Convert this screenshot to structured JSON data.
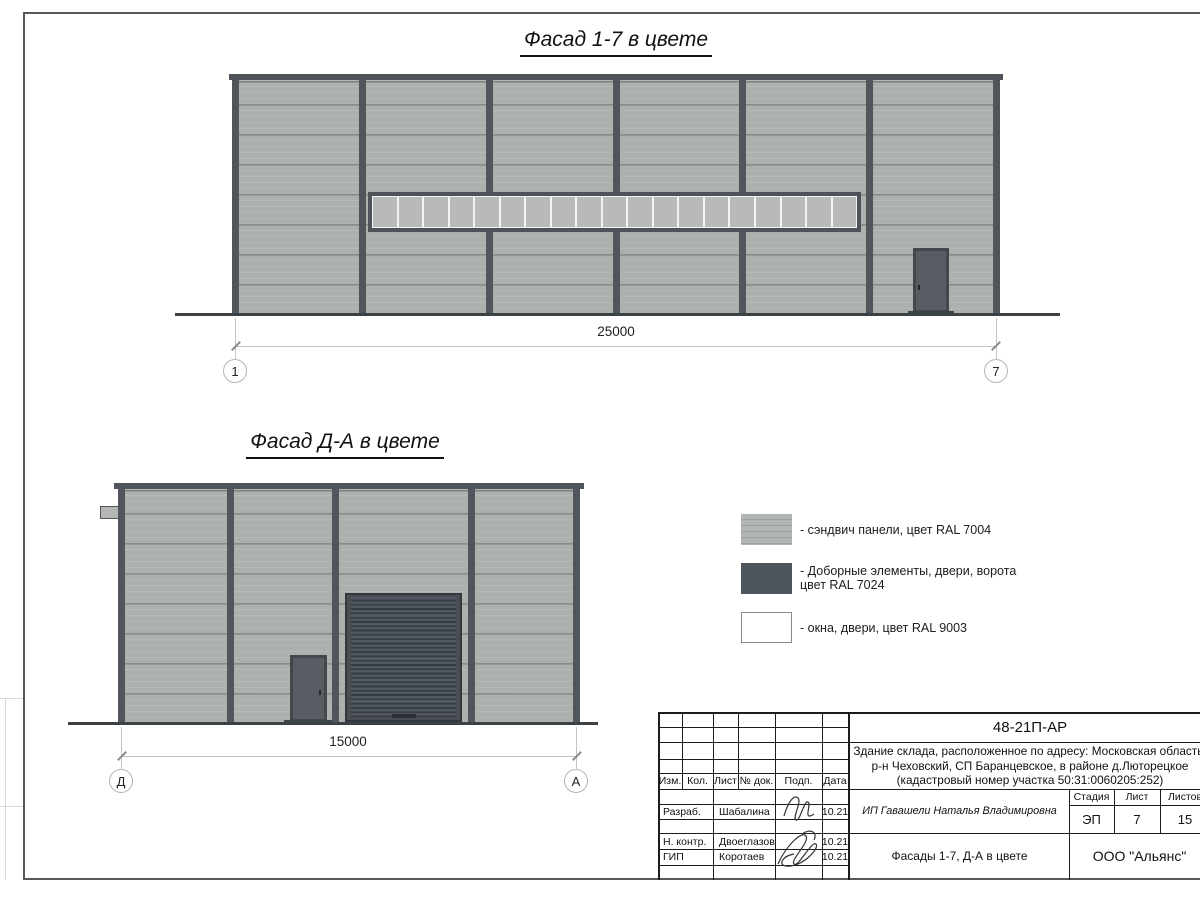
{
  "drawing": {
    "facade_1_7": {
      "title": "Фасад 1-7 в цвете",
      "dimension": "25000",
      "axis_start": "1",
      "axis_end": "7",
      "window_pane_count": 19
    },
    "facade_d_a": {
      "title": "Фасад Д-А в цвете",
      "dimension": "15000",
      "axis_start": "Д",
      "axis_end": "А"
    }
  },
  "legend": {
    "items": [
      {
        "label": "- сэндвич панели, цвет RAL 7004",
        "swatch": "panel-gray",
        "hex": "#abafac"
      },
      {
        "label": "- Доборные элементы, двери, ворота",
        "label_line2": "цвет RAL 7024",
        "swatch": "dark-gray",
        "hex": "#4f555d"
      },
      {
        "label": "- окна, двери, цвет RAL 9003",
        "swatch": "white",
        "hex": "#ffffff"
      }
    ]
  },
  "title_block": {
    "code": "48-21П-АР",
    "project_line1": "Здание склада, расположенное по адресу: Московская область,",
    "project_line2": "р-н Чеховский, СП Баранцевское, в районе д.Люторецкое",
    "project_line3": "(кадастровый номер участка 50:31:0060205:252)",
    "columns": {
      "c1": "Изм.",
      "c2": "Кол.",
      "c3": "Лист",
      "c4": "№ док.",
      "c5": "Подп.",
      "c6": "Дата"
    },
    "rows": [
      {
        "role": "Разраб.",
        "name": "Шабалина",
        "date": "10.21"
      },
      {
        "role": "Н. контр.",
        "name": "Двоеглазов",
        "date": "10.21"
      },
      {
        "role": "ГИП",
        "name": "Коротаев",
        "date": "10.21"
      }
    ],
    "client": "ИП Гавашели Наталья Владимировна",
    "stage_label": "Стадия",
    "sheet_label": "Лист",
    "sheets_label": "Листов",
    "stage": "ЭП",
    "sheet_number": "7",
    "sheets_total": "15",
    "doc_title": "Фасады 1-7, Д-А в цвете",
    "company": "ООО \"Альянс\""
  },
  "colors": {
    "panel_gray": "#adb1ae",
    "dark_elements": "#51565c",
    "window_white": "#ffffff",
    "ground": "#3c4145",
    "frame": "#55595c"
  }
}
